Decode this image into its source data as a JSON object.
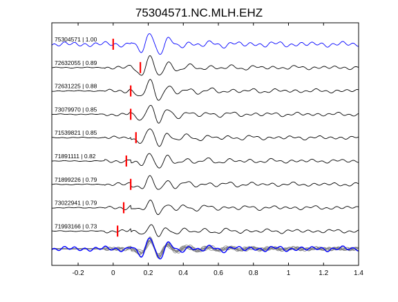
{
  "chart_data": {
    "type": "line",
    "title": "75304571.NC.MLH.EHZ",
    "xlabel": "",
    "ylabel": "",
    "xlim": [
      -0.35,
      1.4
    ],
    "x_ticks": [
      -0.2,
      0,
      0.2,
      0.4,
      0.6,
      0.8,
      1,
      1.2,
      1.4
    ],
    "x_tick_labels": [
      "-0.2",
      "0",
      "0.2",
      "0.4",
      "0.6",
      "0.8",
      "1",
      "1.2",
      "1.4"
    ],
    "grid": false,
    "colors": {
      "reference_trace": "#0000ff",
      "trace": "#000000",
      "pick_marker": "#ff0000",
      "stack_trace": "#808080",
      "stack_reference": "#0000ff"
    },
    "series": [
      {
        "event_id": "75304571",
        "correlation": "1.00",
        "label": "75304571 | 1.00",
        "pick_time": 0.0,
        "reference": true
      },
      {
        "event_id": "72632055",
        "correlation": "0.89",
        "label": "72632055 | 0.89",
        "pick_time": 0.155,
        "reference": false
      },
      {
        "event_id": "72631225",
        "correlation": "0.88",
        "label": "72631225 | 0.88",
        "pick_time": 0.1,
        "reference": false
      },
      {
        "event_id": "73079970",
        "correlation": "0.85",
        "label": "73079970 | 0.85",
        "pick_time": 0.1,
        "reference": false
      },
      {
        "event_id": "71539821",
        "correlation": "0.85",
        "label": "71539821 | 0.85",
        "pick_time": 0.13,
        "reference": false
      },
      {
        "event_id": "71891111",
        "correlation": "0.82",
        "label": "71891111 | 0.82",
        "pick_time": 0.075,
        "reference": false
      },
      {
        "event_id": "71899226",
        "correlation": "0.79",
        "label": "71899226 | 0.79",
        "pick_time": 0.1,
        "reference": false
      },
      {
        "event_id": "73022941",
        "correlation": "0.79",
        "label": "73022941 | 0.79",
        "pick_time": 0.06,
        "reference": false
      },
      {
        "event_id": "71993166",
        "correlation": "0.73",
        "label": "71993166 | 0.73",
        "pick_time": 0.025,
        "reference": false
      }
    ],
    "stack": {
      "trace_count": 9,
      "description": "overlay of all aligned traces"
    }
  }
}
